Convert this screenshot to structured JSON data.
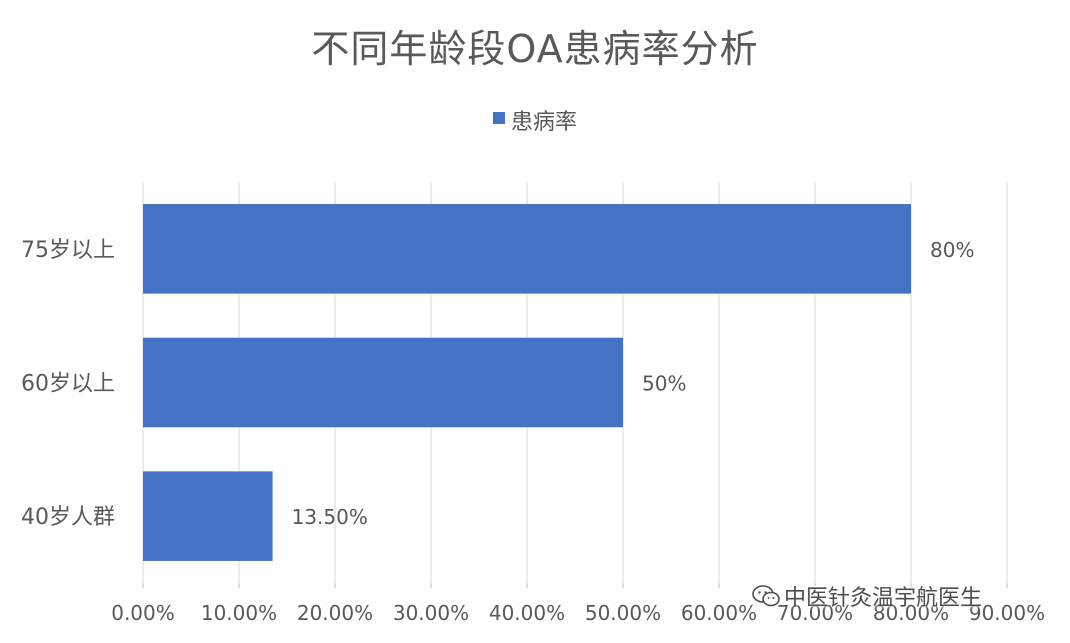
{
  "chart_data": {
    "type": "bar",
    "orientation": "horizontal",
    "title": "不同年龄段OA患病率分析",
    "categories": [
      "75岁以上",
      "60岁以上",
      "40岁人群"
    ],
    "series": [
      {
        "name": "患病率",
        "values": [
          0.8,
          0.5,
          0.135
        ],
        "data_labels": [
          "80%",
          "50%",
          "13.50%"
        ],
        "color": "#4472C4"
      }
    ],
    "xlim": [
      0,
      0.9
    ],
    "xticks": [
      0,
      0.1,
      0.2,
      0.3,
      0.4,
      0.5,
      0.6,
      0.7,
      0.8,
      0.9
    ],
    "xtick_labels": [
      "0.00%",
      "10.00%",
      "20.00%",
      "30.00%",
      "40.00%",
      "50.00%",
      "60.00%",
      "70.00%",
      "80.00%",
      "90.00%"
    ],
    "grid": true,
    "legend_position": "top-center"
  },
  "watermark": {
    "text": "中医针灸温宇航医生",
    "icon": "wechat-icon"
  },
  "colors": {
    "bar": "#4472C4",
    "grid": "#d9d9d9",
    "text": "#595959"
  }
}
